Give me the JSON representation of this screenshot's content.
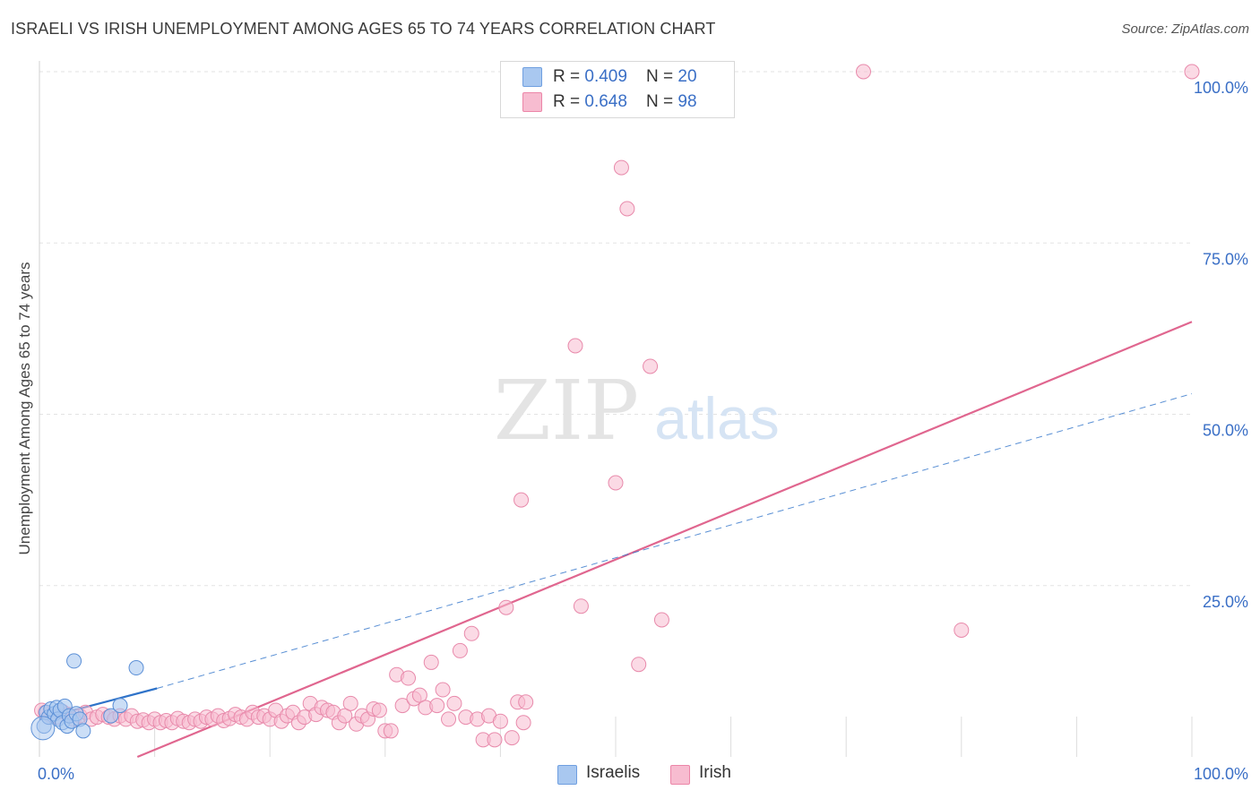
{
  "header": {
    "title": "ISRAELI VS IRISH UNEMPLOYMENT AMONG AGES 65 TO 74 YEARS CORRELATION CHART",
    "source": "Source: ZipAtlas.com"
  },
  "watermark": {
    "zip": "ZIP",
    "atlas": "atlas"
  },
  "legend": {
    "rows": [
      {
        "r_label": "R = ",
        "r_value": "0.409",
        "n_label": "N = ",
        "n_value": "20",
        "color": "#a9c8f0",
        "border": "#6f9fe0"
      },
      {
        "r_label": "R = ",
        "r_value": "0.648",
        "n_label": "N = ",
        "n_value": "98",
        "color": "#f7bcd0",
        "border": "#ec86a8"
      }
    ]
  },
  "bottom_legend": {
    "israelis": "Israelis",
    "irish": "Irish"
  },
  "colors": {
    "israelis_fill": "#a9c8f0",
    "israelis_stroke": "#5b8fd6",
    "israelis_line": "#2f73c9",
    "irish_fill": "#f7bcd0",
    "irish_stroke": "#e88aab",
    "irish_line": "#e0668f",
    "axis_text": "#3a6fc6",
    "grid": "#e3e3e3"
  },
  "chart_data": {
    "type": "scatter",
    "title": "ISRAELI VS IRISH UNEMPLOYMENT AMONG AGES 65 TO 74 YEARS CORRELATION CHART",
    "xlabel": "",
    "ylabel": "Unemployment Among Ages 65 to 74 years",
    "xlim": [
      0,
      100
    ],
    "ylim": [
      0,
      100
    ],
    "x_tick_labels": [
      "0.0%",
      "100.0%"
    ],
    "y_tick_labels": [
      "100.0%",
      "75.0%",
      "50.0%",
      "25.0%"
    ],
    "y_tick_values": [
      100,
      75,
      50,
      25
    ],
    "series": [
      {
        "name": "Israelis",
        "R": 0.409,
        "N": 20,
        "points": [
          [
            0.4,
            4.5
          ],
          [
            0.6,
            6.5
          ],
          [
            0.8,
            5.8
          ],
          [
            1.0,
            7.0
          ],
          [
            1.3,
            6.3
          ],
          [
            1.5,
            7.2
          ],
          [
            1.6,
            5.5
          ],
          [
            1.8,
            6.8
          ],
          [
            2.0,
            5.0
          ],
          [
            2.2,
            7.4
          ],
          [
            2.4,
            4.5
          ],
          [
            2.6,
            6.0
          ],
          [
            2.8,
            5.2
          ],
          [
            3.0,
            14.0
          ],
          [
            3.2,
            6.3
          ],
          [
            3.5,
            5.5
          ],
          [
            3.8,
            3.8
          ],
          [
            6.2,
            6.0
          ],
          [
            7.0,
            7.5
          ],
          [
            8.4,
            13.0
          ]
        ],
        "trend": {
          "x0": 0.0,
          "y0": 5.5,
          "x1": 10.2,
          "y1": 10.0,
          "dashed_to_x": 100.0,
          "dashed_to_y": 53.0
        }
      },
      {
        "name": "Irish",
        "R": 0.648,
        "N": 98,
        "points": [
          [
            0.5,
            6.5
          ],
          [
            1.0,
            6.0
          ],
          [
            1.5,
            5.8
          ],
          [
            2.0,
            6.6
          ],
          [
            2.5,
            6.2
          ],
          [
            3.0,
            5.5
          ],
          [
            3.5,
            6.0
          ],
          [
            4.0,
            6.5
          ],
          [
            4.5,
            5.5
          ],
          [
            5.0,
            5.8
          ],
          [
            5.5,
            6.2
          ],
          [
            6.0,
            5.8
          ],
          [
            6.5,
            5.5
          ],
          [
            7.0,
            6.0
          ],
          [
            7.5,
            5.5
          ],
          [
            8.0,
            6.0
          ],
          [
            8.5,
            5.2
          ],
          [
            9.0,
            5.4
          ],
          [
            9.5,
            5.0
          ],
          [
            10.0,
            5.5
          ],
          [
            10.5,
            5.0
          ],
          [
            11.0,
            5.3
          ],
          [
            11.5,
            5.0
          ],
          [
            12.0,
            5.6
          ],
          [
            12.5,
            5.2
          ],
          [
            13.0,
            5.0
          ],
          [
            13.5,
            5.5
          ],
          [
            14.0,
            5.2
          ],
          [
            14.5,
            5.8
          ],
          [
            15.0,
            5.5
          ],
          [
            15.5,
            6.0
          ],
          [
            16.0,
            5.3
          ],
          [
            16.5,
            5.6
          ],
          [
            17.0,
            6.2
          ],
          [
            17.5,
            5.8
          ],
          [
            18.0,
            5.5
          ],
          [
            18.5,
            6.5
          ],
          [
            19.0,
            5.8
          ],
          [
            19.5,
            6.0
          ],
          [
            20.0,
            5.5
          ],
          [
            20.5,
            6.8
          ],
          [
            21.0,
            5.2
          ],
          [
            21.5,
            6.0
          ],
          [
            22.0,
            6.5
          ],
          [
            22.5,
            5.0
          ],
          [
            23.0,
            5.8
          ],
          [
            23.5,
            7.8
          ],
          [
            24.0,
            6.2
          ],
          [
            24.5,
            7.2
          ],
          [
            25.0,
            6.8
          ],
          [
            25.5,
            6.5
          ],
          [
            26.0,
            5.0
          ],
          [
            26.5,
            6.0
          ],
          [
            27.0,
            7.8
          ],
          [
            27.5,
            4.8
          ],
          [
            28.0,
            6.0
          ],
          [
            28.5,
            5.5
          ],
          [
            29.0,
            7.0
          ],
          [
            29.5,
            6.8
          ],
          [
            30.0,
            3.8
          ],
          [
            30.5,
            3.8
          ],
          [
            31.0,
            12.0
          ],
          [
            31.5,
            7.5
          ],
          [
            32.0,
            11.5
          ],
          [
            32.5,
            8.5
          ],
          [
            33.0,
            9.0
          ],
          [
            33.5,
            7.2
          ],
          [
            34.0,
            13.8
          ],
          [
            34.5,
            7.5
          ],
          [
            35.0,
            9.8
          ],
          [
            35.5,
            5.5
          ],
          [
            36.0,
            7.8
          ],
          [
            36.5,
            15.5
          ],
          [
            37.0,
            5.8
          ],
          [
            37.5,
            18.0
          ],
          [
            38.0,
            5.5
          ],
          [
            38.5,
            2.5
          ],
          [
            39.0,
            6.0
          ],
          [
            39.5,
            2.5
          ],
          [
            40.0,
            5.2
          ],
          [
            40.5,
            21.8
          ],
          [
            41.0,
            2.8
          ],
          [
            41.5,
            8.0
          ],
          [
            42.0,
            5.0
          ],
          [
            42.2,
            8.0
          ],
          [
            41.8,
            37.5
          ],
          [
            46.5,
            60.0
          ],
          [
            47.0,
            22.0
          ],
          [
            50.0,
            40.0
          ],
          [
            50.5,
            86.0
          ],
          [
            51.0,
            80.0
          ],
          [
            52.0,
            13.5
          ],
          [
            53.0,
            57.0
          ],
          [
            54.0,
            20.0
          ],
          [
            71.5,
            100.0
          ],
          [
            80.0,
            18.5
          ],
          [
            100.0,
            100.0
          ],
          [
            0.2,
            6.8
          ]
        ],
        "trend": {
          "x0": 8.5,
          "y0": 0.0,
          "x1": 100.0,
          "y1": 63.5
        }
      }
    ],
    "grid": true,
    "legend_position": "top-center"
  }
}
